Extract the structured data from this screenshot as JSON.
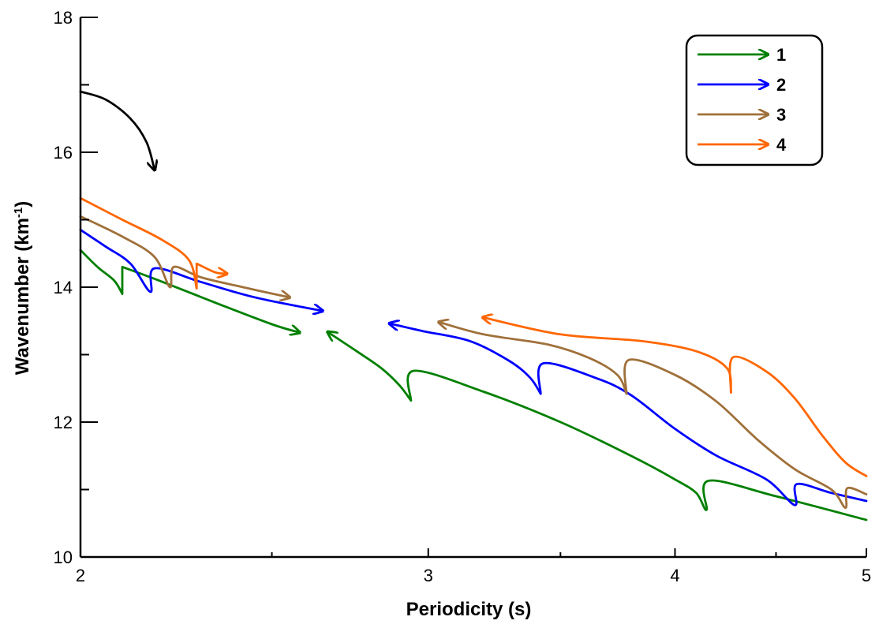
{
  "chart_data": {
    "type": "line",
    "xlabel": "Periodicity (s)",
    "ylabel": "Wavenumber (km",
    "ylabel_sup": "-1",
    "ylabel_close": ")",
    "xscale": "log",
    "xlim": [
      2,
      5
    ],
    "ylim": [
      10,
      18
    ],
    "xticks": [
      2,
      3,
      4,
      5
    ],
    "yticks": [
      10,
      12,
      14,
      16,
      18
    ],
    "grid": false,
    "legend_position": "top-right",
    "series": [
      {
        "name": "1",
        "color": "#008000",
        "segments": [
          {
            "points": [
              [
                2.0,
                14.55
              ],
              [
                2.04,
                14.3
              ],
              [
                2.08,
                14.1
              ],
              [
                2.1,
                13.9
              ],
              [
                2.1,
                14.3
              ],
              [
                2.2,
                14.08
              ],
              [
                2.35,
                13.75
              ],
              [
                2.5,
                13.45
              ],
              [
                2.58,
                13.33
              ]
            ],
            "arrow": "end"
          },
          {
            "points": [
              [
                2.94,
                12.32
              ],
              [
                2.9,
                12.55
              ],
              [
                2.84,
                12.8
              ],
              [
                2.76,
                13.05
              ],
              [
                2.67,
                13.33
              ]
            ],
            "arrow": "end"
          },
          {
            "points": [
              [
                2.94,
                12.32
              ],
              [
                2.95,
                12.76
              ],
              [
                3.2,
                12.45
              ],
              [
                3.5,
                12.0
              ],
              [
                3.8,
                11.5
              ],
              [
                4.0,
                11.15
              ],
              [
                4.1,
                10.95
              ],
              [
                4.15,
                10.7
              ],
              [
                4.16,
                11.13
              ],
              [
                4.5,
                10.9
              ],
              [
                5.0,
                10.55
              ]
            ],
            "arrow": "none"
          }
        ]
      },
      {
        "name": "2",
        "color": "#0000ff",
        "segments": [
          {
            "points": [
              [
                2.0,
                14.85
              ],
              [
                2.06,
                14.6
              ],
              [
                2.12,
                14.35
              ],
              [
                2.17,
                13.93
              ],
              [
                2.18,
                14.28
              ],
              [
                2.3,
                14.08
              ],
              [
                2.45,
                13.85
              ],
              [
                2.65,
                13.65
              ]
            ],
            "arrow": "end"
          },
          {
            "points": [
              [
                3.42,
                12.42
              ],
              [
                3.38,
                12.65
              ],
              [
                3.3,
                12.9
              ],
              [
                3.15,
                13.2
              ],
              [
                2.98,
                13.35
              ],
              [
                2.87,
                13.46
              ]
            ],
            "arrow": "end"
          },
          {
            "points": [
              [
                3.42,
                12.42
              ],
              [
                3.43,
                12.87
              ],
              [
                3.65,
                12.65
              ],
              [
                3.8,
                12.4
              ],
              [
                4.0,
                11.9
              ],
              [
                4.2,
                11.5
              ],
              [
                4.45,
                11.15
              ],
              [
                4.6,
                10.77
              ],
              [
                4.61,
                11.08
              ],
              [
                4.8,
                10.95
              ],
              [
                5.0,
                10.83
              ]
            ],
            "arrow": "none"
          }
        ]
      },
      {
        "name": "3",
        "color": "#a0703a",
        "segments": [
          {
            "points": [
              [
                2.0,
                15.05
              ],
              [
                2.1,
                14.75
              ],
              [
                2.18,
                14.45
              ],
              [
                2.22,
                14.0
              ],
              [
                2.23,
                14.3
              ],
              [
                2.3,
                14.15
              ],
              [
                2.4,
                14.02
              ],
              [
                2.55,
                13.85
              ]
            ],
            "arrow": "end"
          },
          {
            "points": [
              [
                3.78,
                12.42
              ],
              [
                3.74,
                12.7
              ],
              [
                3.62,
                12.95
              ],
              [
                3.45,
                13.15
              ],
              [
                3.2,
                13.3
              ],
              [
                3.04,
                13.48
              ]
            ],
            "arrow": "end"
          },
          {
            "points": [
              [
                3.78,
                12.42
              ],
              [
                3.79,
                12.92
              ],
              [
                4.0,
                12.7
              ],
              [
                4.2,
                12.3
              ],
              [
                4.4,
                11.75
              ],
              [
                4.6,
                11.3
              ],
              [
                4.8,
                11.0
              ],
              [
                4.88,
                10.73
              ],
              [
                4.89,
                11.02
              ],
              [
                5.0,
                10.93
              ]
            ],
            "arrow": "none"
          }
        ]
      },
      {
        "name": "4",
        "color": "#ff6600",
        "segments": [
          {
            "points": [
              [
                2.0,
                15.32
              ],
              [
                2.1,
                15.0
              ],
              [
                2.2,
                14.7
              ],
              [
                2.27,
                14.4
              ],
              [
                2.29,
                13.98
              ],
              [
                2.29,
                14.35
              ],
              [
                2.34,
                14.22
              ],
              [
                2.37,
                14.2
              ]
            ],
            "arrow": "end"
          },
          {
            "points": [
              [
                4.27,
                12.44
              ],
              [
                4.25,
                12.8
              ],
              [
                4.1,
                13.05
              ],
              [
                3.85,
                13.2
              ],
              [
                3.5,
                13.3
              ],
              [
                3.2,
                13.55
              ]
            ],
            "arrow": "end"
          },
          {
            "points": [
              [
                4.27,
                12.44
              ],
              [
                4.28,
                12.96
              ],
              [
                4.45,
                12.75
              ],
              [
                4.6,
                12.35
              ],
              [
                4.75,
                11.8
              ],
              [
                4.88,
                11.4
              ],
              [
                5.0,
                11.2
              ]
            ],
            "arrow": "none"
          }
        ]
      },
      {
        "name": "",
        "color": "#000000",
        "segments": [
          {
            "points": [
              [
                2.0,
                16.9
              ],
              [
                2.06,
                16.78
              ],
              [
                2.12,
                16.5
              ],
              [
                2.16,
                16.15
              ],
              [
                2.18,
                15.75
              ]
            ],
            "arrow": "end"
          }
        ]
      }
    ]
  }
}
